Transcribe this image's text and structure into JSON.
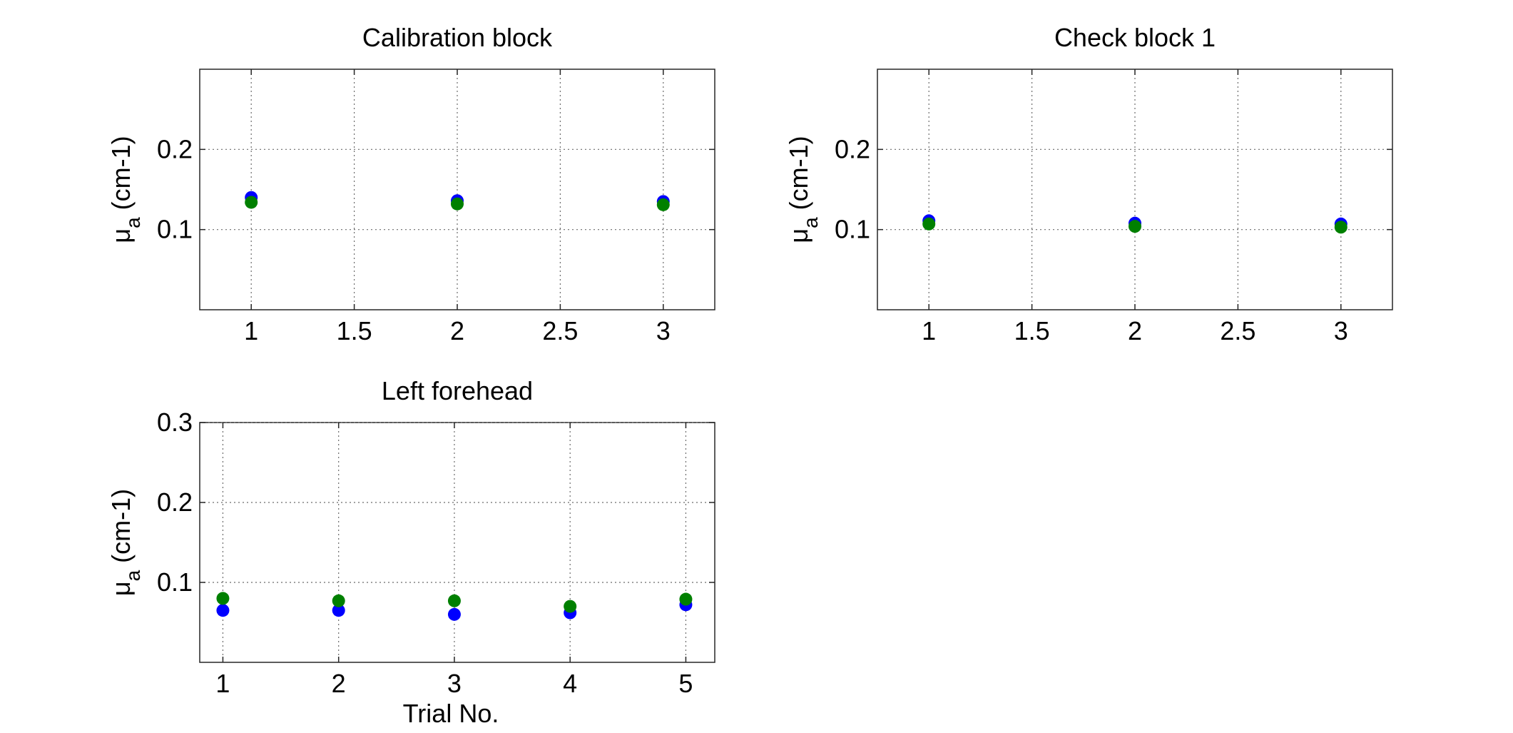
{
  "chart_data": [
    {
      "type": "scatter",
      "title": "Calibration block",
      "xlabel": "",
      "ylabel_main": "μ",
      "ylabel_sub": "a",
      "ylabel_rest": " (cm-1)",
      "xlim": [
        0.75,
        3.25
      ],
      "ylim": [
        0,
        0.3
      ],
      "xticks": [
        1,
        1.5,
        2,
        2.5,
        3
      ],
      "xticklabels": [
        "1",
        "1.5",
        "2",
        "2.5",
        "3"
      ],
      "yticks": [
        0.1,
        0.2
      ],
      "yticklabels": [
        "0.1",
        "0.2"
      ],
      "grid": true,
      "series": [
        {
          "color": "#0000ff",
          "x": [
            1,
            2,
            3
          ],
          "y": [
            0.14,
            0.136,
            0.135
          ]
        },
        {
          "color": "#008000",
          "x": [
            1,
            2,
            3
          ],
          "y": [
            0.134,
            0.132,
            0.131
          ]
        }
      ]
    },
    {
      "type": "scatter",
      "title": "Check block 1",
      "xlabel": "",
      "ylabel_main": "μ",
      "ylabel_sub": "a",
      "ylabel_rest": " (cm-1)",
      "xlim": [
        0.75,
        3.25
      ],
      "ylim": [
        0,
        0.3
      ],
      "xticks": [
        1,
        1.5,
        2,
        2.5,
        3
      ],
      "xticklabels": [
        "1",
        "1.5",
        "2",
        "2.5",
        "3"
      ],
      "yticks": [
        0.1,
        0.2
      ],
      "yticklabels": [
        "0.1",
        "0.2"
      ],
      "grid": true,
      "series": [
        {
          "color": "#0000ff",
          "x": [
            1,
            2,
            3
          ],
          "y": [
            0.111,
            0.108,
            0.107
          ]
        },
        {
          "color": "#008000",
          "x": [
            1,
            2,
            3
          ],
          "y": [
            0.107,
            0.104,
            0.103
          ]
        }
      ]
    },
    {
      "type": "scatter",
      "title": "Left forehead",
      "xlabel": "Trial No.",
      "ylabel_main": "μ",
      "ylabel_sub": "a",
      "ylabel_rest": " (cm-1)",
      "xlim": [
        0.8,
        5.25
      ],
      "ylim": [
        0,
        0.3
      ],
      "xticks": [
        1,
        2,
        3,
        4,
        5
      ],
      "xticklabels": [
        "1",
        "2",
        "3",
        "4",
        "5"
      ],
      "yticks": [
        0.1,
        0.2,
        0.3
      ],
      "yticklabels": [
        "0.1",
        "0.2",
        "0.3"
      ],
      "grid": true,
      "series": [
        {
          "color": "#0000ff",
          "x": [
            1,
            2,
            3,
            4,
            5
          ],
          "y": [
            0.065,
            0.065,
            0.06,
            0.062,
            0.072
          ]
        },
        {
          "color": "#008000",
          "x": [
            1,
            2,
            3,
            4,
            5
          ],
          "y": [
            0.08,
            0.077,
            0.077,
            0.07,
            0.079
          ]
        }
      ]
    }
  ]
}
